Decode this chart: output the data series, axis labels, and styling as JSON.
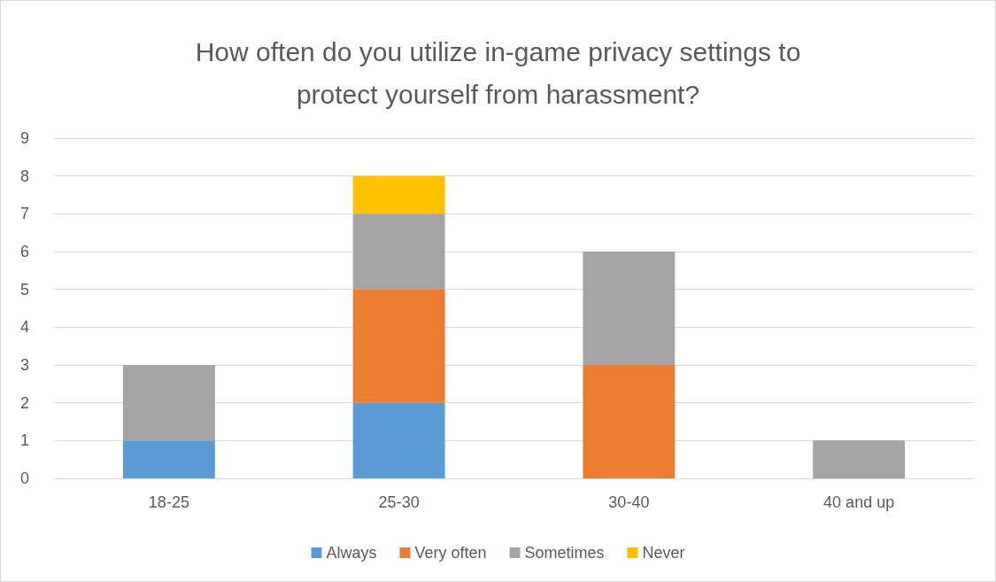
{
  "chart_data": {
    "type": "bar",
    "title": "How often do you utilize in-game privacy settings to\nprotect yourself from harassment?",
    "categories": [
      "18-25",
      "25-30",
      "30-40",
      "40 and up"
    ],
    "stacked": true,
    "series": [
      {
        "name": "Always",
        "color": "#5b9bd5",
        "values": [
          1,
          2,
          0,
          0
        ]
      },
      {
        "name": "Very often",
        "color": "#ed7d31",
        "values": [
          0,
          3,
          3,
          0
        ]
      },
      {
        "name": "Sometimes",
        "color": "#a5a5a5",
        "values": [
          2,
          2,
          3,
          1
        ]
      },
      {
        "name": "Never",
        "color": "#ffc000",
        "values": [
          0,
          1,
          0,
          0
        ]
      }
    ],
    "ylim": [
      0,
      9
    ],
    "yticks": [
      0,
      1,
      2,
      3,
      4,
      5,
      6,
      7,
      8,
      9
    ],
    "grid": "y",
    "legend": "bottom"
  }
}
